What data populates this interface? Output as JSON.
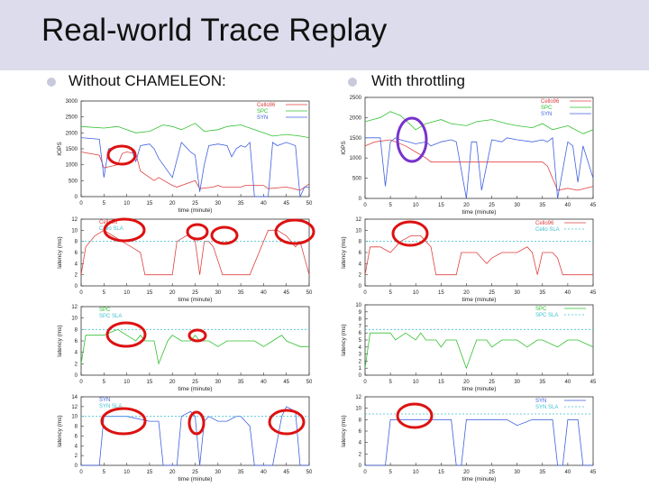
{
  "slide": {
    "title": "Real-world Trace Replay",
    "left_bullet": "Without CHAMELEON:",
    "right_bullet": "With throttling"
  },
  "colors": {
    "cello96": "#e04040",
    "spc": "#30c030",
    "syn": "#4060e0",
    "sla": "#40c0d0",
    "highlight": "#dd1111",
    "highlight_purple": "#7733cc",
    "title_bar": "#dcdcec"
  },
  "chart_data": [
    {
      "type": "line",
      "panel": "left-iops",
      "ylabel": "IOPS",
      "xlabel": "time (minute)",
      "xlim": [
        0,
        50
      ],
      "ylim": [
        0,
        3000
      ],
      "xticks": [
        0,
        5,
        10,
        15,
        20,
        25,
        30,
        35,
        40,
        45,
        50
      ],
      "yticks": [
        0,
        500,
        1000,
        1500,
        2000,
        2500,
        3000
      ],
      "legend": [
        "Cello96",
        "SPC",
        "SYN"
      ],
      "series": [
        {
          "name": "Cello96",
          "color": "#e04040",
          "x": [
            0,
            4,
            5,
            8,
            9,
            10,
            12,
            13,
            16,
            17,
            20,
            21,
            25,
            26,
            29,
            30,
            31,
            35,
            36,
            40,
            41,
            45,
            48,
            50
          ],
          "y": [
            1400,
            1300,
            900,
            1000,
            1350,
            1400,
            1350,
            800,
            500,
            600,
            350,
            300,
            500,
            250,
            300,
            350,
            300,
            300,
            350,
            350,
            250,
            300,
            200,
            400
          ]
        },
        {
          "name": "SPC",
          "color": "#30c030",
          "x": [
            0,
            5,
            8,
            10,
            12,
            15,
            18,
            20,
            22,
            25,
            27,
            30,
            32,
            35,
            38,
            40,
            42,
            45,
            48,
            50
          ],
          "y": [
            2200,
            2150,
            2200,
            2100,
            2000,
            2050,
            2250,
            2200,
            2100,
            2300,
            2050,
            2100,
            2200,
            2250,
            2100,
            2000,
            1900,
            1950,
            1900,
            1850
          ]
        },
        {
          "name": "SYN",
          "color": "#4060e0",
          "x": [
            0,
            4,
            5,
            6,
            10,
            11,
            12,
            13,
            15,
            16,
            17,
            20,
            22,
            23,
            24,
            25,
            26,
            27,
            28,
            30,
            32,
            33,
            34,
            35,
            36,
            37,
            38,
            40,
            41,
            42,
            43,
            45,
            47,
            48,
            49,
            50
          ],
          "y": [
            1850,
            1800,
            600,
            1500,
            1600,
            1500,
            1100,
            1600,
            1650,
            1500,
            1200,
            600,
            1700,
            1550,
            1400,
            1300,
            150,
            1000,
            1600,
            1650,
            1600,
            1250,
            1500,
            1600,
            1550,
            1700,
            0,
            0,
            0,
            1700,
            1600,
            1700,
            1600,
            0,
            300,
            300
          ]
        }
      ]
    },
    {
      "type": "line",
      "panel": "right-iops",
      "ylabel": "IOPS",
      "xlabel": "time (minute)",
      "xlim": [
        0,
        45
      ],
      "ylim": [
        0,
        2500
      ],
      "xticks": [
        0,
        5,
        10,
        15,
        20,
        25,
        30,
        35,
        40,
        45
      ],
      "yticks": [
        0,
        500,
        1000,
        1500,
        2000,
        2500
      ],
      "legend": [
        "Cello96",
        "SPC",
        "SYN"
      ],
      "series": [
        {
          "name": "Cello96",
          "color": "#e04040",
          "x": [
            0,
            2,
            5,
            8,
            10,
            12,
            13,
            15,
            20,
            25,
            30,
            35,
            36,
            38,
            40,
            42,
            45
          ],
          "y": [
            1300,
            1400,
            1450,
            1300,
            1150,
            1000,
            900,
            900,
            900,
            900,
            900,
            900,
            800,
            200,
            250,
            200,
            300
          ]
        },
        {
          "name": "SPC",
          "color": "#30c030",
          "x": [
            0,
            3,
            5,
            7,
            10,
            12,
            15,
            17,
            20,
            22,
            25,
            28,
            30,
            33,
            35,
            37,
            40,
            43,
            45
          ],
          "y": [
            1900,
            2000,
            2150,
            2050,
            1700,
            1850,
            1950,
            1850,
            1800,
            1900,
            1950,
            1850,
            1800,
            1750,
            1850,
            1700,
            1800,
            1600,
            1700
          ]
        },
        {
          "name": "SYN",
          "color": "#4060e0",
          "x": [
            0,
            3,
            4,
            5,
            6,
            7,
            10,
            12,
            13,
            15,
            17,
            18,
            20,
            21,
            22,
            23,
            25,
            27,
            28,
            30,
            33,
            35,
            36,
            37,
            38,
            40,
            41,
            42,
            43,
            45
          ],
          "y": [
            1500,
            1500,
            300,
            1400,
            1500,
            1450,
            1350,
            1400,
            1300,
            1400,
            1450,
            1400,
            0,
            1400,
            1400,
            200,
            1450,
            1400,
            1500,
            1450,
            1400,
            1450,
            1400,
            1500,
            0,
            1400,
            1300,
            400,
            1300,
            500
          ]
        }
      ]
    },
    {
      "type": "line",
      "panel": "left-latency-cello",
      "ylabel": "latency (ms)",
      "xlabel": "time (minute)",
      "xlim": [
        0,
        50
      ],
      "ylim": [
        0,
        12
      ],
      "xticks": [
        0,
        5,
        10,
        15,
        20,
        25,
        30,
        35,
        40,
        45,
        50
      ],
      "yticks": [
        0,
        2,
        4,
        6,
        8,
        10,
        12
      ],
      "legend": [
        "Cello96",
        "Cello SLA"
      ],
      "series": [
        {
          "name": "Cello96",
          "color": "#e04040",
          "x": [
            0,
            1,
            3,
            5,
            7,
            9,
            11,
            13,
            14,
            15,
            20,
            21,
            23,
            24,
            25,
            26,
            27,
            28,
            29,
            31,
            32,
            35,
            37,
            39,
            40,
            41,
            43,
            45,
            47,
            48,
            50
          ],
          "y": [
            2,
            7,
            9,
            10,
            9,
            8,
            7,
            6,
            2,
            2,
            2,
            8,
            9,
            9,
            8,
            2,
            8,
            8,
            7,
            2,
            2,
            2,
            2,
            6,
            8,
            10,
            10,
            9,
            7,
            8,
            2
          ]
        },
        {
          "name": "Cello SLA",
          "color": "#40c0d0",
          "x": [
            0,
            50
          ],
          "y": [
            8,
            8
          ]
        }
      ]
    },
    {
      "type": "line",
      "panel": "right-latency-cello",
      "ylabel": "latency (ms)",
      "xlabel": "time (minute)",
      "xlim": [
        0,
        45
      ],
      "ylim": [
        0,
        12
      ],
      "xticks": [
        0,
        5,
        10,
        15,
        20,
        25,
        30,
        35,
        40,
        45
      ],
      "yticks": [
        0,
        2,
        4,
        6,
        8,
        10,
        12
      ],
      "legend": [
        "Cello96",
        "Cello SLA"
      ],
      "series": [
        {
          "name": "Cello96",
          "color": "#e04040",
          "x": [
            0,
            1,
            3,
            5,
            7,
            9,
            11,
            13,
            14,
            15,
            18,
            19,
            20,
            22,
            24,
            25,
            27,
            30,
            32,
            33,
            34,
            35,
            37,
            38,
            39,
            40,
            42,
            45
          ],
          "y": [
            2,
            7,
            7,
            6,
            8,
            9,
            9,
            7,
            2,
            2,
            2,
            6,
            6,
            6,
            4,
            5,
            6,
            6,
            7,
            6,
            2,
            6,
            6,
            5,
            2,
            2,
            2,
            2
          ]
        },
        {
          "name": "Cello SLA",
          "color": "#40c0d0",
          "x": [
            0,
            45
          ],
          "y": [
            8,
            8
          ]
        }
      ]
    },
    {
      "type": "line",
      "panel": "left-latency-spc",
      "ylabel": "latency (ms)",
      "xlabel": "time (minute)",
      "xlim": [
        0,
        50
      ],
      "ylim": [
        0,
        12
      ],
      "xticks": [
        0,
        5,
        10,
        15,
        20,
        25,
        30,
        35,
        40,
        45,
        50
      ],
      "yticks": [
        0,
        2,
        4,
        6,
        8,
        10,
        12
      ],
      "legend": [
        "SPC",
        "SPC SLA"
      ],
      "series": [
        {
          "name": "SPC",
          "color": "#30c030",
          "x": [
            0,
            1,
            5,
            8,
            10,
            12,
            13,
            14,
            16,
            17,
            19,
            20,
            22,
            24,
            25,
            26,
            28,
            30,
            32,
            35,
            38,
            40,
            42,
            44,
            45,
            48,
            50
          ],
          "y": [
            2,
            7,
            7,
            8,
            7,
            6,
            7,
            6,
            6,
            2,
            6,
            7,
            6,
            6,
            7,
            6,
            6,
            5,
            6,
            6,
            6,
            5,
            6,
            7,
            6,
            5,
            5
          ]
        },
        {
          "name": "SPC SLA",
          "color": "#40c0d0",
          "x": [
            0,
            50
          ],
          "y": [
            8,
            8
          ]
        }
      ]
    },
    {
      "type": "line",
      "panel": "right-latency-spc",
      "ylabel": "latency (ms)",
      "xlabel": "time (minute)",
      "xlim": [
        0,
        45
      ],
      "ylim": [
        0,
        10
      ],
      "xticks": [
        0,
        5,
        10,
        15,
        20,
        25,
        30,
        35,
        40,
        45
      ],
      "yticks": [
        0,
        1,
        2,
        3,
        4,
        5,
        6,
        7,
        8,
        9,
        10
      ],
      "legend": [
        "SPC",
        "SPC SLA"
      ],
      "series": [
        {
          "name": "SPC",
          "color": "#30c030",
          "x": [
            0,
            1,
            3,
            5,
            6,
            8,
            10,
            11,
            12,
            14,
            15,
            16,
            18,
            20,
            22,
            24,
            25,
            27,
            30,
            32,
            34,
            35,
            38,
            40,
            42,
            45
          ],
          "y": [
            1,
            6,
            6,
            6,
            5,
            6,
            5,
            6,
            5,
            5,
            4,
            5,
            5,
            1,
            5,
            5,
            4,
            5,
            5,
            4,
            5,
            5,
            4,
            5,
            5,
            4
          ]
        },
        {
          "name": "SPC SLA",
          "color": "#40c0d0",
          "x": [
            0,
            45
          ],
          "y": [
            6.5,
            6.5
          ]
        }
      ]
    },
    {
      "type": "line",
      "panel": "left-latency-syn",
      "ylabel": "latency (ms)",
      "xlabel": "time (minute)",
      "xlim": [
        0,
        50
      ],
      "ylim": [
        0,
        14
      ],
      "xticks": [
        0,
        5,
        10,
        15,
        20,
        25,
        30,
        35,
        40,
        45,
        50
      ],
      "yticks": [
        0,
        2,
        4,
        6,
        8,
        10,
        12,
        14
      ],
      "legend": [
        "SYN",
        "SYN SLA"
      ],
      "series": [
        {
          "name": "SYN",
          "color": "#4060e0",
          "x": [
            0,
            2,
            3,
            4,
            5,
            10,
            15,
            17,
            18,
            20,
            21,
            22,
            24,
            25,
            26,
            27,
            28,
            30,
            32,
            34,
            35,
            36,
            37,
            38,
            40,
            42,
            44,
            45,
            47,
            48,
            50
          ],
          "y": [
            0,
            0,
            0,
            0,
            10,
            10,
            9,
            9,
            0,
            0,
            0,
            10,
            11,
            10,
            0,
            9,
            10,
            9,
            9,
            10,
            10,
            9,
            8,
            0,
            0,
            0,
            10,
            12,
            11,
            0,
            0
          ]
        },
        {
          "name": "SYN SLA",
          "color": "#40c0d0",
          "x": [
            0,
            50
          ],
          "y": [
            10,
            10
          ]
        }
      ]
    },
    {
      "type": "line",
      "panel": "right-latency-syn",
      "ylabel": "latency (ms)",
      "xlabel": "time (minute)",
      "xlim": [
        0,
        45
      ],
      "ylim": [
        0,
        12
      ],
      "xticks": [
        0,
        5,
        10,
        15,
        20,
        25,
        30,
        35,
        40,
        45
      ],
      "yticks": [
        0,
        2,
        4,
        6,
        8,
        10,
        12
      ],
      "legend": [
        "SYN",
        "SYN SLA"
      ],
      "series": [
        {
          "name": "SYN",
          "color": "#4060e0",
          "x": [
            0,
            2,
            3,
            4,
            5,
            8,
            10,
            12,
            15,
            17,
            18,
            19,
            20,
            22,
            24,
            25,
            28,
            30,
            33,
            35,
            37,
            38,
            39,
            40,
            42,
            43,
            45
          ],
          "y": [
            0,
            0,
            0,
            0,
            8,
            8,
            8,
            8,
            8,
            8,
            0,
            0,
            8,
            8,
            8,
            8,
            8,
            7,
            8,
            8,
            8,
            0,
            0,
            8,
            8,
            0,
            0
          ]
        },
        {
          "name": "SYN SLA",
          "color": "#40c0d0",
          "x": [
            0,
            45
          ],
          "y": [
            9,
            9
          ]
        }
      ]
    }
  ]
}
